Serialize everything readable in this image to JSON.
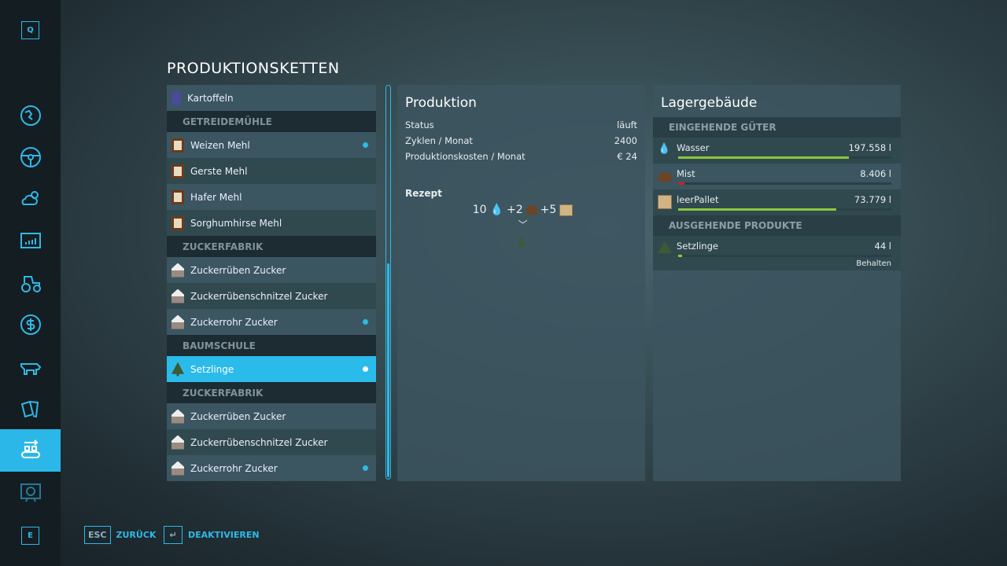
{
  "sidebar": {
    "top_key": "Q",
    "bottom_key": "E",
    "items": [
      {
        "icon": "map-icon"
      },
      {
        "icon": "steering-wheel-icon"
      },
      {
        "icon": "weather-icon"
      },
      {
        "icon": "statistics-icon"
      },
      {
        "icon": "tractor-icon"
      },
      {
        "icon": "finance-icon"
      },
      {
        "icon": "animals-icon"
      },
      {
        "icon": "contracts-icon"
      },
      {
        "icon": "production-icon",
        "active": true
      },
      {
        "icon": "help-icon"
      }
    ]
  },
  "title": "PRODUKTIONSKETTEN",
  "list": [
    {
      "type": "item",
      "label": "Kartoffeln",
      "icon": "potato-bag-icon"
    },
    {
      "type": "header",
      "label": "GETREIDEMÜHLE"
    },
    {
      "type": "item",
      "label": "Weizen Mehl",
      "icon": "flour-icon",
      "dot": true
    },
    {
      "type": "item",
      "label": "Gerste Mehl",
      "icon": "flour-icon"
    },
    {
      "type": "item",
      "label": "Hafer Mehl",
      "icon": "flour-icon"
    },
    {
      "type": "item",
      "label": "Sorghumhirse Mehl",
      "icon": "flour-icon"
    },
    {
      "type": "header",
      "label": "ZUCKERFABRIK"
    },
    {
      "type": "item",
      "label": "Zuckerrüben Zucker",
      "icon": "sugar-icon"
    },
    {
      "type": "item",
      "label": "Zuckerrübenschnitzel Zucker",
      "icon": "sugar-icon"
    },
    {
      "type": "item",
      "label": "Zuckerrohr Zucker",
      "icon": "sugar-icon",
      "dot": true
    },
    {
      "type": "header",
      "label": "BAUMSCHULE"
    },
    {
      "type": "item",
      "label": "Setzlinge",
      "icon": "sapling-icon",
      "dot": true,
      "selected": true
    },
    {
      "type": "header",
      "label": "ZUCKERFABRIK"
    },
    {
      "type": "item",
      "label": "Zuckerrüben Zucker",
      "icon": "sugar-icon"
    },
    {
      "type": "item",
      "label": "Zuckerrübenschnitzel Zucker",
      "icon": "sugar-icon"
    },
    {
      "type": "item",
      "label": "Zuckerrohr Zucker",
      "icon": "sugar-icon",
      "dot": true
    }
  ],
  "production": {
    "title": "Produktion",
    "rows": [
      {
        "k": "Status",
        "v": "läuft"
      },
      {
        "k": "Zyklen / Monat",
        "v": "2400"
      },
      {
        "k": "Produktionskosten / Monat",
        "v": "€ 24"
      }
    ],
    "recipe_label": "Rezept",
    "recipe": {
      "in1": "10",
      "in2": "+2",
      "in3": "+5"
    }
  },
  "storage": {
    "title": "Lagergebäude",
    "incoming_label": "EINGEHENDE GÜTER",
    "outgoing_label": "AUSGEHENDE PRODUKTE",
    "incoming": [
      {
        "name": "Wasser",
        "value": "197.558 l",
        "fill_pct": 80,
        "color": "#8cc63f",
        "icon": "water-icon"
      },
      {
        "name": "Mist",
        "value": "8.406 l",
        "fill_pct": 3,
        "color": "#d0202a",
        "icon": "manure-icon"
      },
      {
        "name": "leerPallet",
        "value": "73.779 l",
        "fill_pct": 74,
        "color": "#8cc63f",
        "icon": "pallet-icon"
      }
    ],
    "outgoing": [
      {
        "name": "Setzlinge",
        "value": "44 l",
        "fill_pct": 2,
        "color": "#8cc63f",
        "icon": "sapling-icon",
        "mode": "Behalten"
      }
    ]
  },
  "footer": {
    "back_key": "ESC",
    "back_label": "ZURÜCK",
    "toggle_key": "↵",
    "toggle_label": "DEAKTIVIEREN"
  }
}
